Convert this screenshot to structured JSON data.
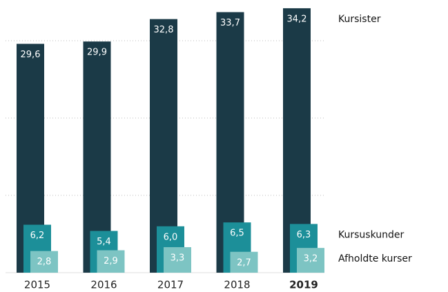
{
  "chart_data": {
    "type": "bar",
    "categories": [
      "2015",
      "2016",
      "2017",
      "2018",
      "2019"
    ],
    "series": [
      {
        "name": "Kursister",
        "color": "#1b3a47",
        "values": [
          29.6,
          29.9,
          32.8,
          33.7,
          34.2
        ],
        "value_labels": [
          "29,6",
          "29,9",
          "32,8",
          "33,7",
          "34,2"
        ]
      },
      {
        "name": "Kursuskunder",
        "color": "#1c8f99",
        "values": [
          6.2,
          5.4,
          6.0,
          6.5,
          6.3
        ],
        "value_labels": [
          "6,2",
          "5,4",
          "6,0",
          "6,5",
          "6,3"
        ]
      },
      {
        "name": "Afholdte kurser",
        "color": "#7dc4c3",
        "values": [
          2.8,
          2.9,
          3.3,
          2.7,
          3.2
        ],
        "value_labels": [
          "2,8",
          "2,9",
          "3,3",
          "2,7",
          "3,2"
        ]
      }
    ],
    "ylim": [
      0,
      35
    ],
    "yticks": [
      0,
      10,
      20,
      30
    ],
    "grid": true
  }
}
